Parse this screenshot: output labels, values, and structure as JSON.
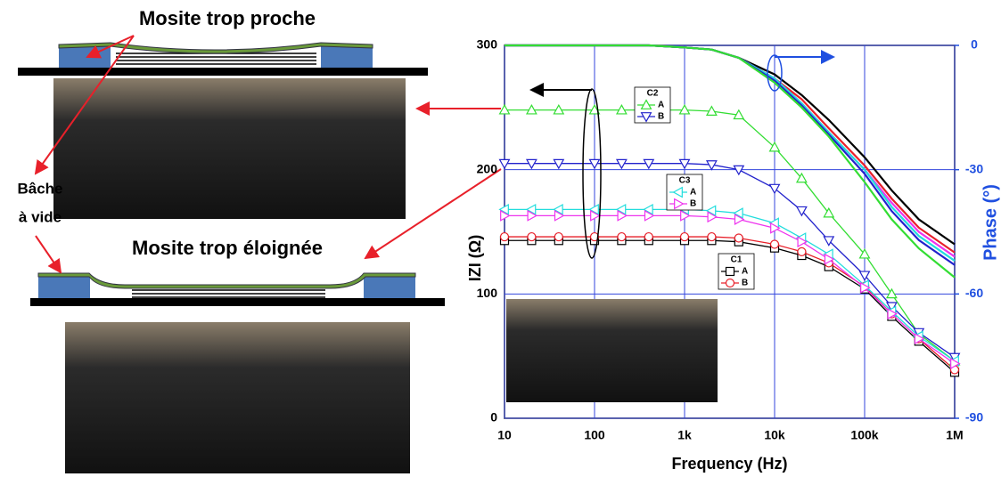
{
  "diagram": {
    "top_label": "Mosite trop proche",
    "side_label": [
      "Bâche",
      "à vide"
    ],
    "bottom_label": "Mosite trop éloignée"
  },
  "chart_data": {
    "type": "line",
    "xlabel": "Frequency (Hz)",
    "ylabel": "IZI (Ω)",
    "y2label": "Phase (°)",
    "log_x": true,
    "grid": true,
    "x": [
      10,
      20,
      40,
      100,
      200,
      400,
      1000,
      2000,
      4000,
      10000,
      20000,
      40000,
      100000,
      200000,
      400000,
      1000000
    ],
    "xlim": [
      10,
      1000000
    ],
    "xticks": [
      10,
      100,
      {
        "value": 1000,
        "label": "1k"
      },
      {
        "value": 10000,
        "label": "10k"
      },
      {
        "value": 100000,
        "label": "100k"
      },
      {
        "value": 1000000,
        "label": "1M"
      }
    ],
    "ylim": [
      0,
      300
    ],
    "yticks": [
      0,
      100,
      200,
      300
    ],
    "y2lim": [
      -90,
      0
    ],
    "y2ticks": [
      0,
      -30,
      -60,
      -90
    ],
    "series": [
      {
        "name": "A",
        "group": "C1",
        "color": "#000000",
        "marker": "square",
        "values": [
          143,
          143,
          143,
          143,
          143,
          143,
          143,
          143,
          142,
          137,
          131,
          122,
          104,
          82,
          62,
          37
        ]
      },
      {
        "name": "B",
        "group": "C1",
        "color": "#e8202a",
        "marker": "circle",
        "values": [
          146,
          146,
          146,
          146,
          146,
          146,
          146,
          146,
          145,
          140,
          134,
          125,
          106,
          84,
          64,
          39
        ]
      },
      {
        "name": "A",
        "group": "C2",
        "color": "#33dd33",
        "marker": "triangle-up",
        "values": [
          248,
          248,
          248,
          248,
          248,
          248,
          248,
          247,
          244,
          218,
          193,
          165,
          132,
          100,
          68,
          46
        ]
      },
      {
        "name": "B",
        "group": "C2",
        "color": "#2222cc",
        "marker": "triangle-down",
        "values": [
          205,
          205,
          205,
          205,
          205,
          205,
          205,
          204,
          200,
          185,
          167,
          143,
          115,
          90,
          69,
          49
        ]
      },
      {
        "name": "A",
        "group": "C3",
        "color": "#22dddd",
        "marker": "triangle-left",
        "values": [
          168,
          168,
          168,
          168,
          168,
          168,
          168,
          167,
          165,
          157,
          145,
          132,
          107,
          86,
          66,
          46
        ]
      },
      {
        "name": "B",
        "group": "C3",
        "color": "#ee33ee",
        "marker": "triangle-right",
        "values": [
          163,
          163,
          163,
          163,
          163,
          163,
          163,
          162,
          160,
          153,
          142,
          128,
          105,
          84,
          64,
          44
        ]
      },
      {
        "axis": "y2",
        "color": "#000000",
        "values": [
          0,
          0,
          0,
          0,
          0,
          0,
          -0.5,
          -1,
          -3,
          -7,
          -12,
          -18,
          -27,
          -35,
          -42,
          -48
        ]
      },
      {
        "axis": "y2",
        "color": "#e8202a",
        "values": [
          0,
          0,
          0,
          0,
          0,
          0,
          -0.5,
          -1,
          -3,
          -8,
          -13,
          -20,
          -29,
          -37,
          -44,
          -50
        ]
      },
      {
        "axis": "y2",
        "color": "#ee33ee",
        "values": [
          0,
          0,
          0,
          0,
          0,
          0,
          -0.5,
          -1,
          -3,
          -8,
          -14,
          -21,
          -30,
          -38,
          -45,
          -51
        ]
      },
      {
        "axis": "y2",
        "color": "#22dddd",
        "values": [
          0,
          0,
          0,
          0,
          0,
          0,
          -0.5,
          -1,
          -3,
          -8,
          -14,
          -21,
          -30,
          -39,
          -46,
          -52
        ]
      },
      {
        "axis": "y2",
        "color": "#2222cc",
        "values": [
          0,
          0,
          0,
          0,
          0,
          0,
          -0.5,
          -1,
          -3,
          -8.5,
          -14.5,
          -21.5,
          -31,
          -40,
          -47,
          -53
        ]
      },
      {
        "axis": "y2",
        "color": "#33dd33",
        "values": [
          0,
          0,
          0,
          0,
          0,
          0,
          -0.5,
          -1,
          -3,
          -9,
          -15,
          -22,
          -33,
          -42,
          -49,
          -56
        ]
      }
    ]
  }
}
